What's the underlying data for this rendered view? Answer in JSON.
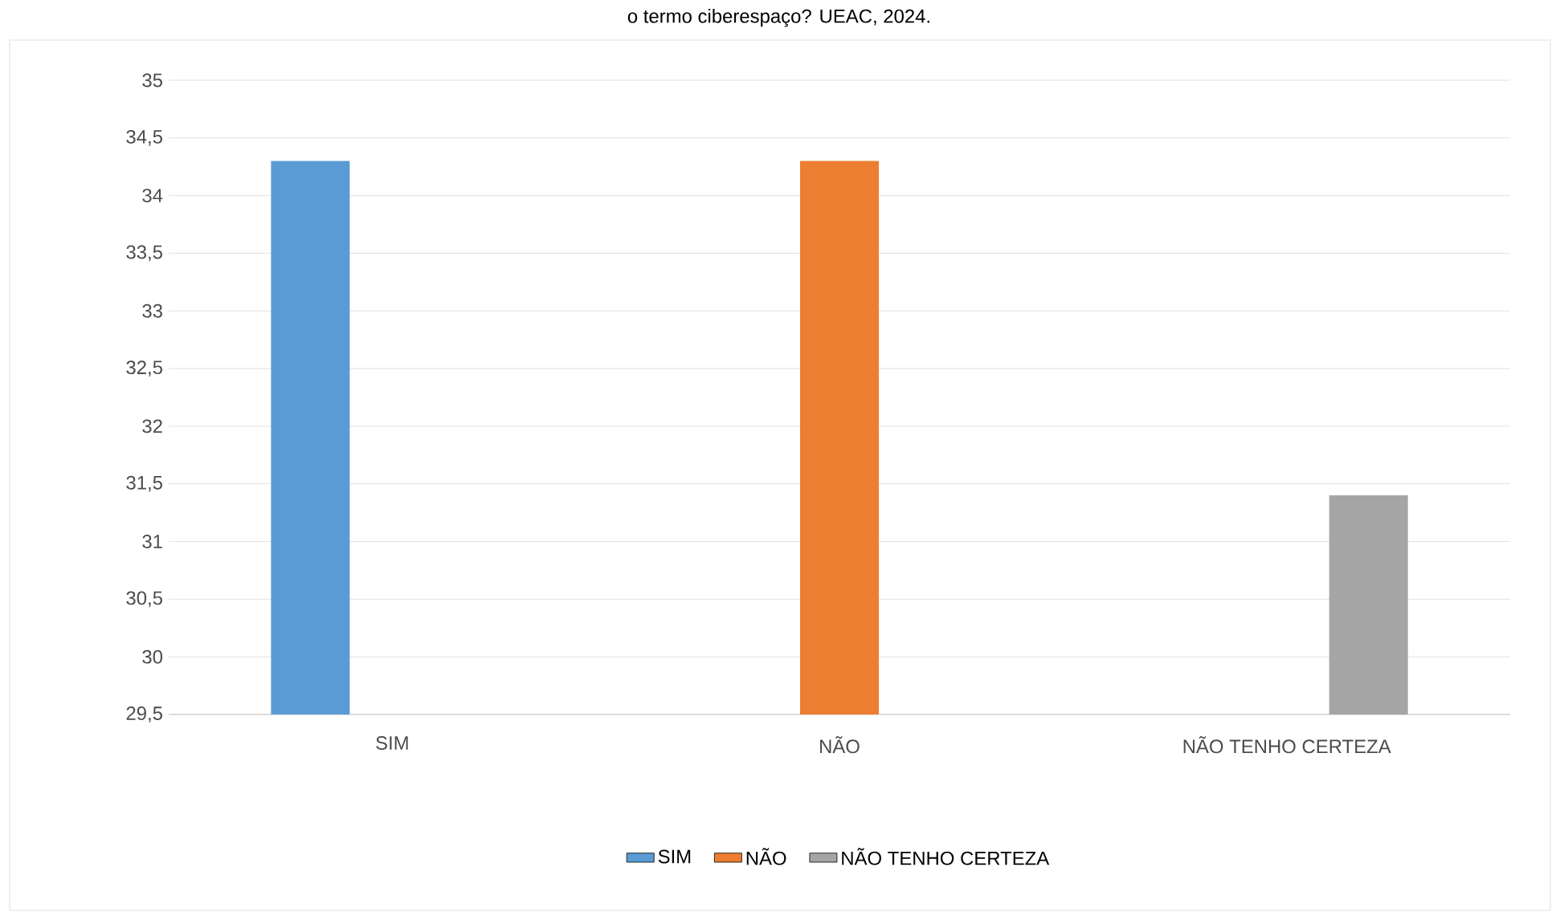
{
  "chart_data": {
    "type": "bar",
    "title": "o termo ciberespaço? UEAC, 2024.",
    "categories": [
      "SIM",
      "NÃO",
      "NÃO TENHO CERTEZA"
    ],
    "series": [
      {
        "name": "SIM",
        "color": "#5b9bd5",
        "values": [
          34.3,
          null,
          null
        ]
      },
      {
        "name": "NÃO",
        "color": "#ed7d31",
        "values": [
          null,
          34.3,
          null
        ]
      },
      {
        "name": "NÃO TENHO CERTEZA",
        "color": "#a5a5a5",
        "values": [
          null,
          null,
          31.4
        ]
      }
    ],
    "ylim": [
      29.5,
      35
    ],
    "yticks": [
      {
        "value": 29.5,
        "label": "29,5"
      },
      30,
      {
        "value": 30.5,
        "label": "30,5"
      },
      31,
      {
        "value": 31.5,
        "label": "31,5"
      },
      32,
      {
        "value": 32.5,
        "label": "32,5"
      },
      33,
      {
        "value": 33.5,
        "label": "33,5"
      },
      34,
      {
        "value": 34.5,
        "label": "34,5"
      },
      35
    ],
    "grid": "y",
    "legend": "bottom"
  }
}
